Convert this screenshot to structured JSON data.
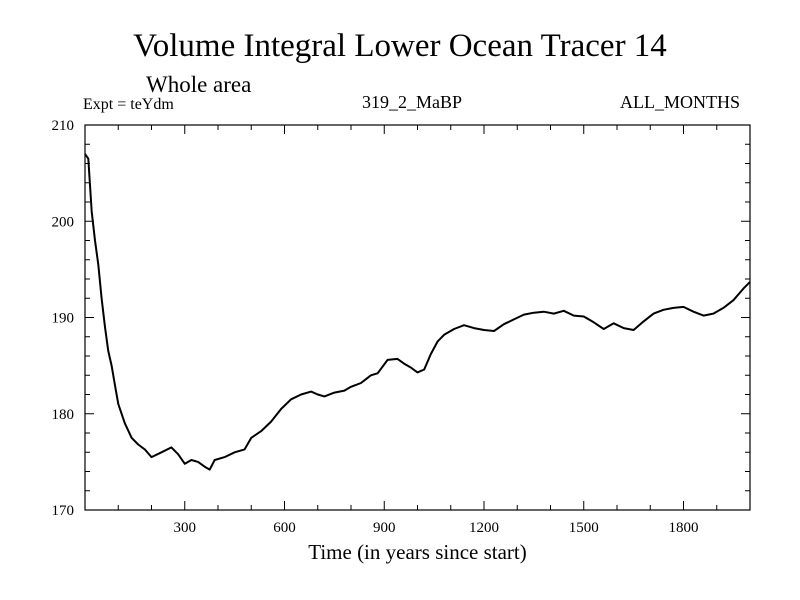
{
  "header": {
    "title": "Volume Integral Lower Ocean Tracer 14",
    "subtitle": "Whole area",
    "experiment": "Expt = teYdm",
    "run_id": "319_2_MaBP",
    "period": "ALL_MONTHS"
  },
  "chart_data": {
    "type": "line",
    "title": "Volume Integral Lower Ocean Tracer 14",
    "xlabel": "Time (in years since start)",
    "ylabel": "",
    "xlim": [
      0,
      2000
    ],
    "ylim": [
      170,
      210
    ],
    "xticks": [
      300,
      600,
      900,
      1200,
      1500,
      1800
    ],
    "yticks": [
      170,
      180,
      190,
      200,
      210
    ],
    "line_color": "#000000",
    "series": [
      {
        "name": "Tracer 14",
        "x": [
          0,
          10,
          20,
          30,
          40,
          50,
          60,
          70,
          80,
          90,
          100,
          120,
          140,
          160,
          180,
          200,
          230,
          260,
          280,
          300,
          320,
          340,
          360,
          375,
          390,
          420,
          450,
          480,
          500,
          530,
          560,
          590,
          620,
          650,
          680,
          700,
          720,
          750,
          780,
          800,
          830,
          860,
          880,
          910,
          940,
          960,
          980,
          1000,
          1020,
          1040,
          1060,
          1080,
          1110,
          1140,
          1170,
          1200,
          1230,
          1260,
          1290,
          1320,
          1350,
          1380,
          1410,
          1440,
          1470,
          1500,
          1530,
          1560,
          1590,
          1620,
          1650,
          1680,
          1710,
          1740,
          1770,
          1800,
          1830,
          1860,
          1890,
          1920,
          1950,
          1980,
          2000
        ],
        "y": [
          207,
          206.5,
          201,
          198,
          195.5,
          192,
          189,
          186.5,
          185,
          183,
          181,
          179,
          177.5,
          176.8,
          176.3,
          175.5,
          176,
          176.5,
          175.8,
          174.8,
          175.2,
          175,
          174.5,
          174.2,
          175.2,
          175.5,
          176,
          176.3,
          177.5,
          178.2,
          179.2,
          180.5,
          181.5,
          182,
          182.3,
          182,
          181.8,
          182.2,
          182.4,
          182.8,
          183.2,
          184,
          184.2,
          185.6,
          185.7,
          185.2,
          184.8,
          184.3,
          184.6,
          186.2,
          187.5,
          188.2,
          188.8,
          189.2,
          188.9,
          188.7,
          188.6,
          189.3,
          189.8,
          190.3,
          190.5,
          190.6,
          190.4,
          190.7,
          190.2,
          190.1,
          189.5,
          188.8,
          189.4,
          188.9,
          188.7,
          189.6,
          190.4,
          190.8,
          191,
          191.1,
          190.6,
          190.2,
          190.4,
          191,
          191.8,
          193,
          193.7
        ]
      }
    ]
  }
}
